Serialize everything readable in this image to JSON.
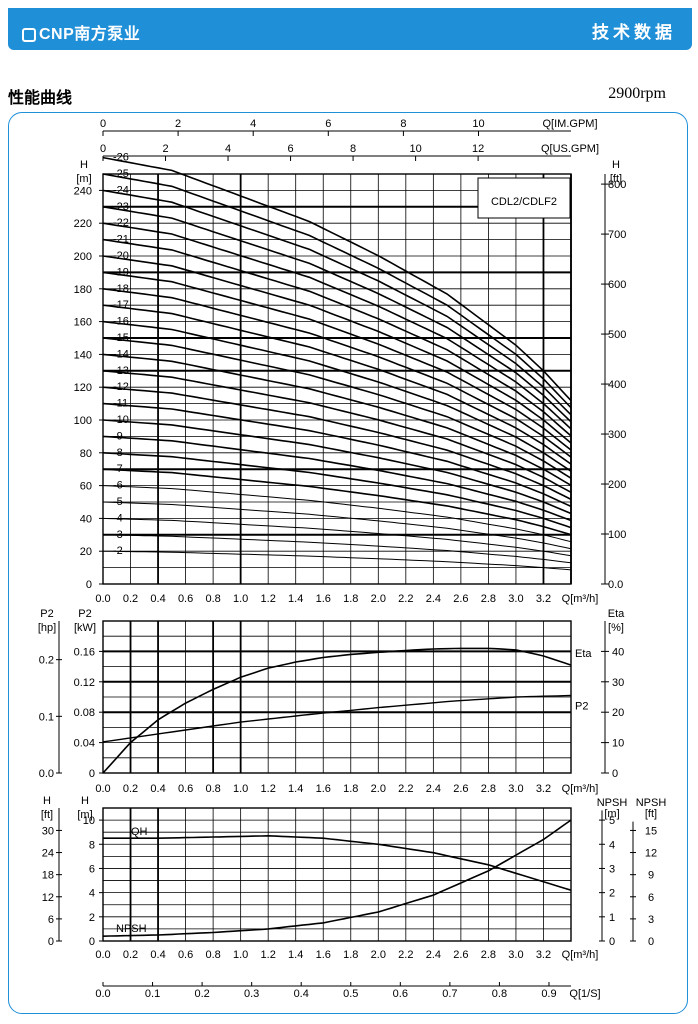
{
  "header": {
    "brand": "CNP南方泵业",
    "section_title": "技术数据",
    "section_subtitle": "性能曲线",
    "speed": "2900rpm",
    "colors": {
      "banner": "#1f8fd8",
      "frame": "#1f8fd8"
    }
  },
  "chart_data": [
    {
      "type": "line",
      "title": "CDL2/CDLF2",
      "x": {
        "label": "Q[m³/h]",
        "range": [
          0,
          3.4
        ],
        "ticks": [
          "0.0",
          "0.2",
          "0.4",
          "0.6",
          "0.8",
          "1.0",
          "1.2",
          "1.4",
          "1.6",
          "1.8",
          "2.0",
          "2.2",
          "2.4",
          "2.6",
          "2.8",
          "3.0",
          "3.2"
        ],
        "secondary_top_1": {
          "label": "Q[IM.GPM]",
          "ticks": [
            "0",
            "2",
            "4",
            "6",
            "8",
            "10"
          ]
        },
        "secondary_top_2": {
          "label": "Q[US.GPM]",
          "ticks": [
            "0",
            "2",
            "4",
            "6",
            "8",
            "10",
            "12"
          ]
        }
      },
      "y_left": {
        "label": "H",
        "unit": "[m]",
        "range": [
          0,
          250
        ],
        "ticks": [
          "0",
          "20",
          "40",
          "60",
          "80",
          "100",
          "120",
          "140",
          "160",
          "180",
          "200",
          "220",
          "240"
        ]
      },
      "y_right": {
        "label": "H",
        "unit": "[ft]",
        "ticks": [
          "0.0",
          "100",
          "200",
          "300",
          "400",
          "500",
          "600",
          "700",
          "800"
        ]
      },
      "stages": [
        2,
        3,
        4,
        5,
        6,
        7,
        8,
        9,
        10,
        11,
        12,
        13,
        14,
        15,
        16,
        17,
        18,
        19,
        20,
        21,
        22,
        23,
        24,
        25,
        26
      ],
      "stage_labels": [
        "-2",
        "-3",
        "-4",
        "-5",
        "-6",
        "-7",
        "-8",
        "-9",
        "-10",
        "-11",
        "-12",
        "-13",
        "-14",
        "-15",
        "-16",
        "-17",
        "-18",
        "-19",
        "-20",
        "-21",
        "-22",
        "-23",
        "-24",
        "-25",
        "-26"
      ],
      "head_per_stage_curve": {
        "q": [
          0,
          0.5,
          1.0,
          1.5,
          2.0,
          2.5,
          3.0,
          3.2,
          3.4
        ],
        "h": [
          10.0,
          9.7,
          9.1,
          8.5,
          7.7,
          6.8,
          5.6,
          5.0,
          4.3
        ]
      }
    },
    {
      "type": "line",
      "x": {
        "label": "Q[m³/h]",
        "range": [
          0,
          3.4
        ],
        "ticks": [
          "0.0",
          "0.2",
          "0.4",
          "0.6",
          "0.8",
          "1.0",
          "1.2",
          "1.4",
          "1.6",
          "1.8",
          "2.0",
          "2.2",
          "2.4",
          "2.6",
          "2.8",
          "3.0",
          "3.2"
        ]
      },
      "y_left_hp": {
        "label": "P2",
        "unit": "[hp]",
        "ticks": [
          "0.0",
          "0.1",
          "0.2"
        ]
      },
      "y_left_kw": {
        "label": "P2",
        "unit": "[kW]",
        "range": [
          0,
          0.2
        ],
        "ticks": [
          "0",
          "0.04",
          "0.08",
          "0.12",
          "0.16"
        ]
      },
      "y_right": {
        "label": "Eta",
        "unit": "[%]",
        "range": [
          0,
          50
        ],
        "ticks": [
          "0",
          "10",
          "20",
          "30",
          "40"
        ]
      },
      "series": [
        {
          "name": "Eta",
          "axis": "right",
          "q": [
            0,
            0.2,
            0.4,
            0.6,
            0.8,
            1.0,
            1.2,
            1.4,
            1.6,
            1.8,
            2.0,
            2.2,
            2.4,
            2.6,
            2.8,
            3.0,
            3.2,
            3.4
          ],
          "values": [
            0,
            10,
            17.5,
            23,
            27.5,
            31.5,
            34.5,
            36.5,
            38,
            39,
            39.7,
            40.3,
            40.8,
            41.0,
            41.0,
            40.5,
            38.5,
            35.5
          ]
        },
        {
          "name": "P2",
          "axis": "kw",
          "q": [
            0,
            0.5,
            1.0,
            1.5,
            2.0,
            2.5,
            3.0,
            3.4
          ],
          "values": [
            0.041,
            0.054,
            0.067,
            0.077,
            0.086,
            0.094,
            0.1,
            0.102
          ]
        }
      ]
    },
    {
      "type": "line",
      "x": {
        "label": "Q[m³/h]",
        "range": [
          0,
          3.4
        ],
        "ticks": [
          "0.0",
          "0.2",
          "0.4",
          "0.6",
          "0.8",
          "1.0",
          "1.2",
          "1.4",
          "1.6",
          "1.8",
          "2.0",
          "2.2",
          "2.4",
          "2.6",
          "2.8",
          "3.0",
          "3.2"
        ]
      },
      "x_bottom": {
        "label": "Q[1/S]",
        "ticks": [
          "0.0",
          "0.1",
          "0.2",
          "0.3",
          "0.4",
          "0.5",
          "0.6",
          "0.7",
          "0.8",
          "0.9"
        ]
      },
      "y_left_ft": {
        "label": "H",
        "unit": "[ft]",
        "ticks": [
          "0",
          "6",
          "12",
          "18",
          "24",
          "30"
        ]
      },
      "y_left_m": {
        "label": "H",
        "unit": "[m]",
        "range": [
          0,
          11
        ],
        "ticks": [
          "0",
          "2",
          "4",
          "6",
          "8",
          "10"
        ]
      },
      "y_right_m": {
        "label": "NPSH",
        "unit": "[m]",
        "range": [
          0,
          5.5
        ],
        "ticks": [
          "0",
          "1",
          "2",
          "3",
          "4",
          "5"
        ]
      },
      "y_right_ft": {
        "label": "NPSH",
        "unit": "[ft]",
        "ticks": [
          "0",
          "3",
          "6",
          "9",
          "12",
          "15"
        ]
      },
      "series": [
        {
          "name": "QH",
          "axis": "left_m",
          "q": [
            0,
            0.4,
            0.8,
            1.2,
            1.6,
            2.0,
            2.4,
            2.8,
            3.2,
            3.4
          ],
          "values": [
            8.5,
            8.5,
            8.6,
            8.7,
            8.5,
            8.0,
            7.3,
            6.3,
            4.9,
            4.2
          ]
        },
        {
          "name": "NPSH",
          "axis": "right_m",
          "q": [
            0,
            0.4,
            0.8,
            1.2,
            1.6,
            2.0,
            2.4,
            2.8,
            3.2,
            3.4
          ],
          "values": [
            0.2,
            0.25,
            0.35,
            0.5,
            0.75,
            1.2,
            1.9,
            2.9,
            4.2,
            5.0
          ]
        }
      ]
    }
  ]
}
